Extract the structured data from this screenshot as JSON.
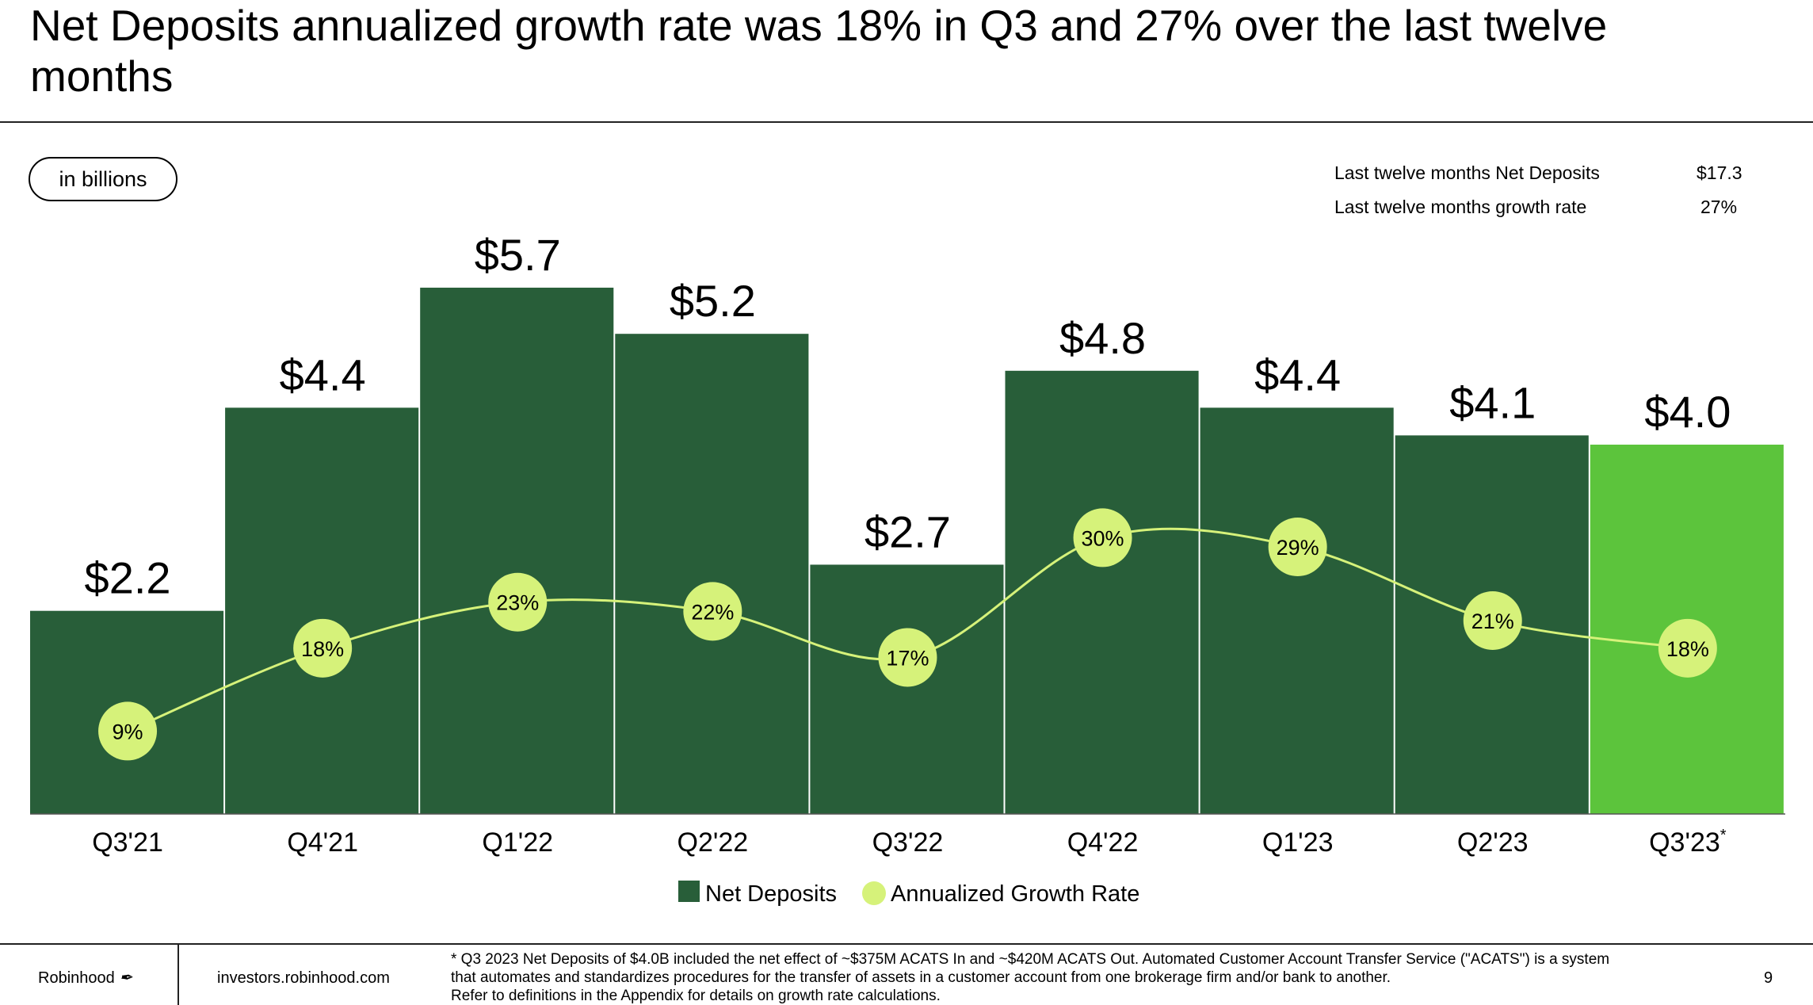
{
  "title": "Net Deposits annualized growth rate was 18% in Q3 and 27% over the last twelve months",
  "unit_pill": "in billions",
  "stats": [
    {
      "label": "Last twelve months Net Deposits",
      "value": "$17.3"
    },
    {
      "label": "Last twelve months growth rate",
      "value": "27%"
    }
  ],
  "chart_data": {
    "type": "bar",
    "categories": [
      "Q3'21",
      "Q4'21",
      "Q1'22",
      "Q2'22",
      "Q3'22",
      "Q4'22",
      "Q1'23",
      "Q2'23",
      "Q3'23"
    ],
    "category_footnote_marks": [
      "",
      "",
      "",
      "",
      "",
      "",
      "",
      "",
      "*"
    ],
    "series": [
      {
        "name": "Net Deposits",
        "type": "bar",
        "values": [
          2.2,
          4.4,
          5.7,
          5.2,
          2.7,
          4.8,
          4.4,
          4.1,
          4.0
        ],
        "labels": [
          "$2.2",
          "$4.4",
          "$5.7",
          "$5.2",
          "$2.7",
          "$4.8",
          "$4.4",
          "$4.1",
          "$4.0"
        ]
      },
      {
        "name": "Annualized Growth Rate",
        "type": "line",
        "values": [
          9,
          18,
          23,
          22,
          17,
          30,
          29,
          21,
          18
        ],
        "labels": [
          "9%",
          "18%",
          "23%",
          "22%",
          "17%",
          "30%",
          "29%",
          "21%",
          "18%"
        ]
      }
    ],
    "colors": {
      "bar": "#285e39",
      "bar_highlight": "#5cc43c",
      "growth": "#d6f27a"
    },
    "highlight_index": 8,
    "legend_position": "bottom",
    "grid": false
  },
  "footer": {
    "brand": "Robinhood",
    "url": "investors.robinhood.com",
    "notes": [
      "* Q3 2023 Net Deposits of $4.0B included the net effect of ~$375M ACATS In and ~$420M ACATS Out. Automated Customer Account Transfer Service (\"ACATS\") is a system",
      "that automates and standardizes procedures for the transfer of assets in a customer account from one brokerage firm and/or bank to another.",
      "Refer to definitions in the Appendix for details on growth rate calculations."
    ],
    "page_number": "9"
  }
}
